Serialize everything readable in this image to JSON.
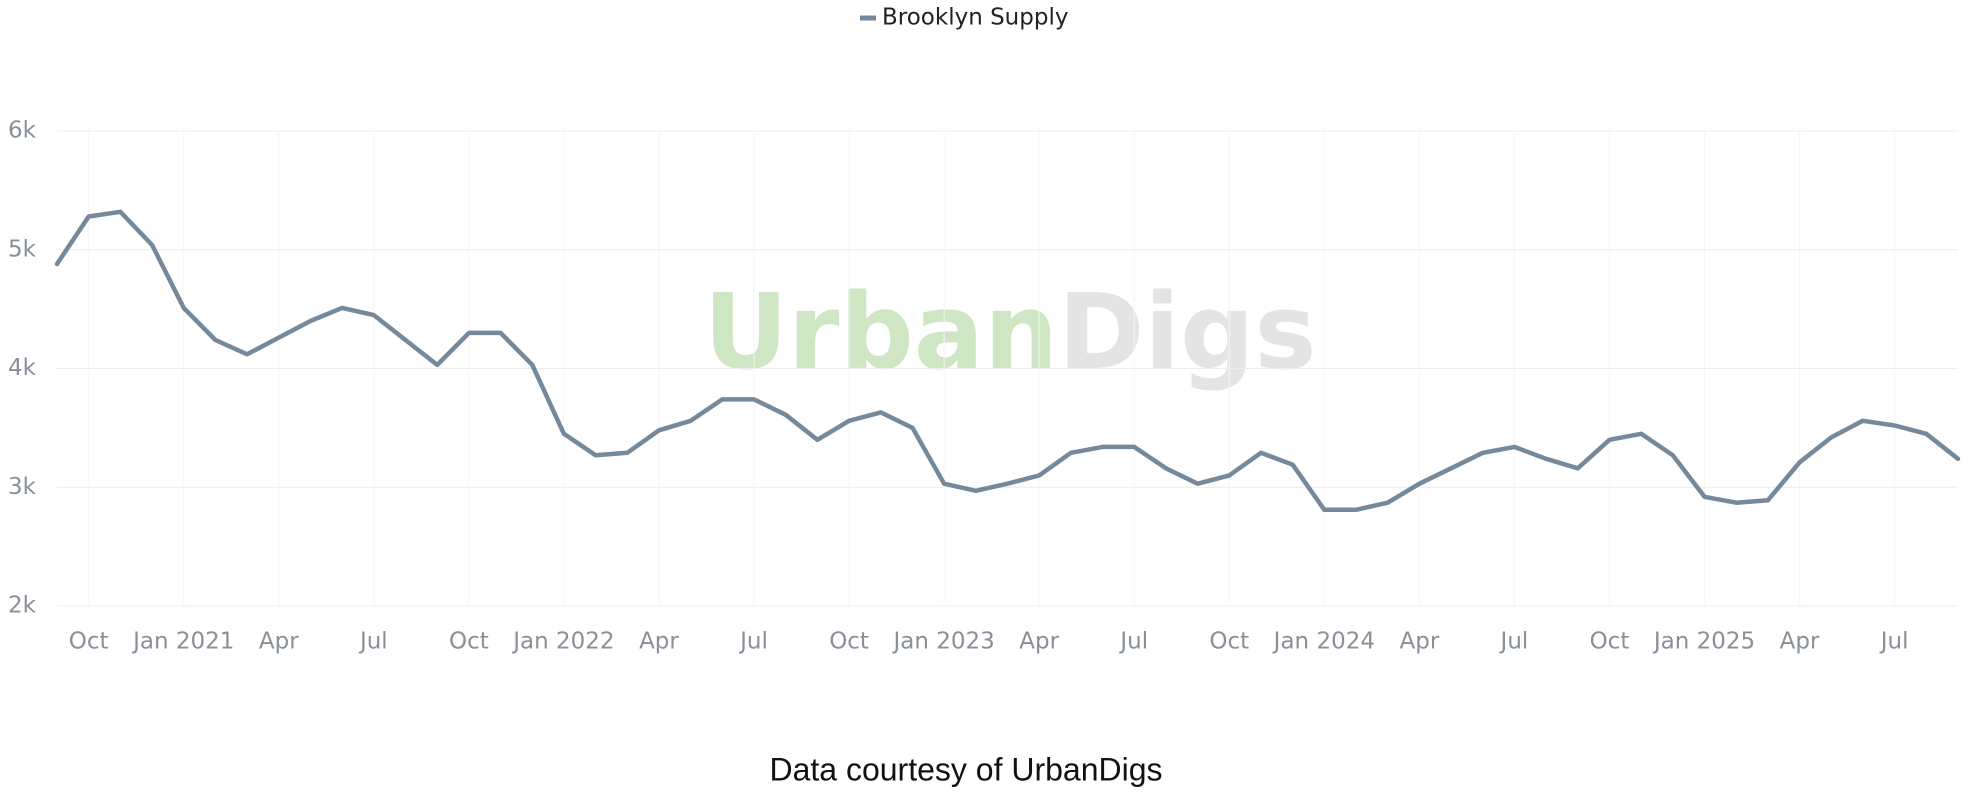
{
  "chart_data": {
    "type": "line",
    "legend_position": "top",
    "watermark": [
      "Urban",
      "Digs"
    ],
    "caption": "Data courtesy of UrbanDigs",
    "x": [
      "2020-09",
      "2020-10",
      "2020-11",
      "2020-12",
      "2021-01",
      "2021-02",
      "2021-03",
      "2021-04",
      "2021-05",
      "2021-06",
      "2021-07",
      "2021-08",
      "2021-09",
      "2021-10",
      "2021-11",
      "2021-12",
      "2022-01",
      "2022-02",
      "2022-03",
      "2022-04",
      "2022-05",
      "2022-06",
      "2022-07",
      "2022-08",
      "2022-09",
      "2022-10",
      "2022-11",
      "2022-12",
      "2023-01",
      "2023-02",
      "2023-03",
      "2023-04",
      "2023-05",
      "2023-06",
      "2023-07",
      "2023-08",
      "2023-09",
      "2023-10",
      "2023-11",
      "2023-12",
      "2024-01",
      "2024-02",
      "2024-03",
      "2024-04",
      "2024-05",
      "2024-06",
      "2024-07",
      "2024-08",
      "2024-09",
      "2024-10",
      "2024-11",
      "2024-12",
      "2025-01",
      "2025-02",
      "2025-03",
      "2025-04",
      "2025-05",
      "2025-06",
      "2025-07",
      "2025-08",
      "2025-09"
    ],
    "series": [
      {
        "name": "Brooklyn Supply",
        "color": "#76899b",
        "values": [
          4880,
          5280,
          5320,
          5040,
          4510,
          4240,
          4120,
          4260,
          4400,
          4510,
          4450,
          4240,
          4030,
          4300,
          4300,
          4030,
          3450,
          3270,
          3290,
          3480,
          3560,
          3740,
          3740,
          3610,
          3400,
          3560,
          3630,
          3500,
          3030,
          2970,
          3030,
          3100,
          3290,
          3340,
          3340,
          3160,
          3030,
          3100,
          3290,
          3190,
          2810,
          2810,
          2870,
          3030,
          3160,
          3290,
          3340,
          3240,
          3160,
          3400,
          3450,
          3270,
          2920,
          2870,
          2890,
          3210,
          3420,
          3560,
          3520,
          3450,
          3240
        ]
      }
    ],
    "xlim": [
      "2020-09",
      "2025-09"
    ],
    "xticks": [
      {
        "value": "2020-10",
        "label": "Oct"
      },
      {
        "value": "2021-01",
        "label": "Jan 2021"
      },
      {
        "value": "2021-04",
        "label": "Apr"
      },
      {
        "value": "2021-07",
        "label": "Jul"
      },
      {
        "value": "2021-10",
        "label": "Oct"
      },
      {
        "value": "2022-01",
        "label": "Jan 2022"
      },
      {
        "value": "2022-04",
        "label": "Apr"
      },
      {
        "value": "2022-07",
        "label": "Jul"
      },
      {
        "value": "2022-10",
        "label": "Oct"
      },
      {
        "value": "2023-01",
        "label": "Jan 2023"
      },
      {
        "value": "2023-04",
        "label": "Apr"
      },
      {
        "value": "2023-07",
        "label": "Jul"
      },
      {
        "value": "2023-10",
        "label": "Oct"
      },
      {
        "value": "2024-01",
        "label": "Jan 2024"
      },
      {
        "value": "2024-04",
        "label": "Apr"
      },
      {
        "value": "2024-07",
        "label": "Jul"
      },
      {
        "value": "2024-10",
        "label": "Oct"
      },
      {
        "value": "2025-01",
        "label": "Jan 2025"
      },
      {
        "value": "2025-04",
        "label": "Apr"
      },
      {
        "value": "2025-07",
        "label": "Jul"
      }
    ],
    "ylim": [
      2000,
      6000
    ],
    "yticks": [
      {
        "value": 2000,
        "label": "2k"
      },
      {
        "value": 3000,
        "label": "3k"
      },
      {
        "value": 4000,
        "label": "4k"
      },
      {
        "value": 5000,
        "label": "5k"
      },
      {
        "value": 6000,
        "label": "6k"
      }
    ],
    "grid": true
  }
}
